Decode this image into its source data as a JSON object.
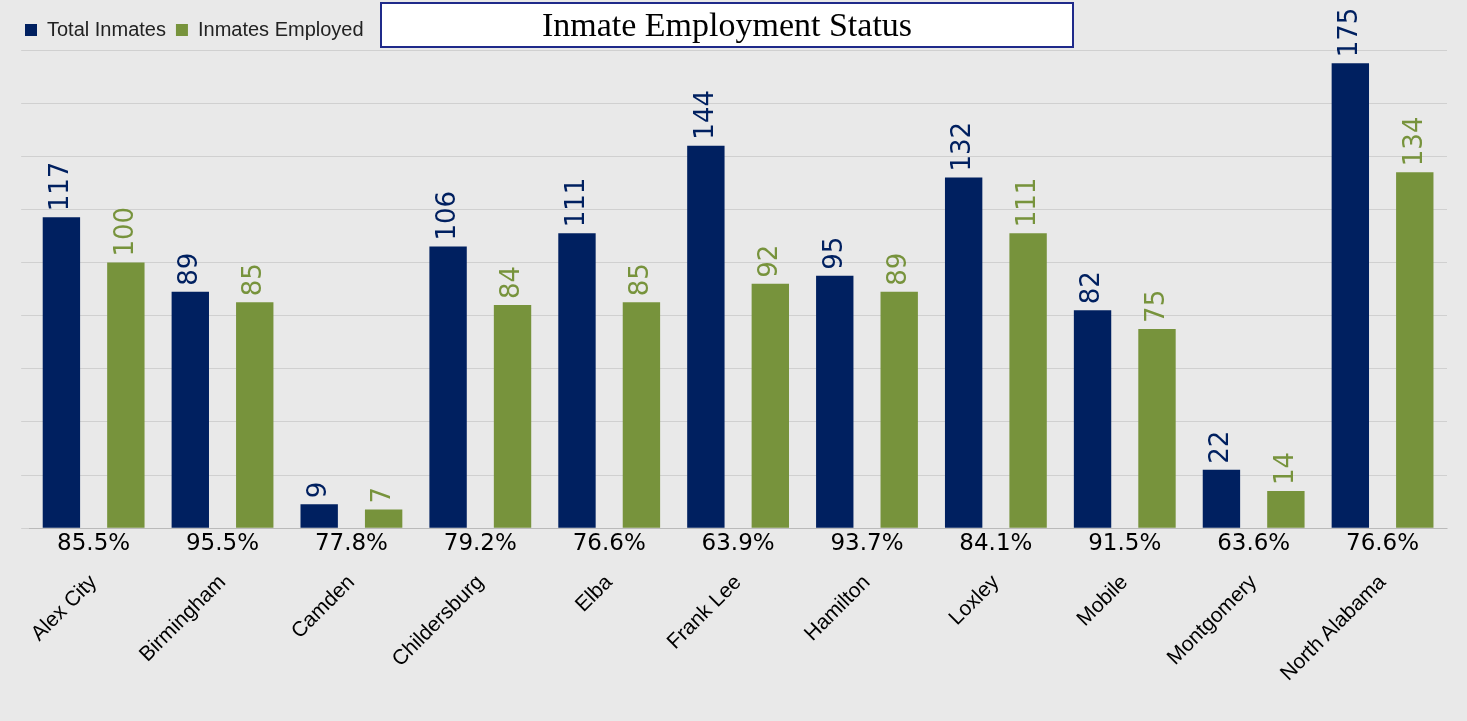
{
  "chart_data": {
    "type": "bar",
    "title": "Inmate Employment Status",
    "categories": [
      "Alex City",
      "Birmingham",
      "Camden",
      "Childersburg",
      "Elba",
      "Frank Lee",
      "Hamilton",
      "Loxley",
      "Mobile",
      "Montgomery",
      "North Alabama"
    ],
    "series": [
      {
        "name": "Total Inmates",
        "color": "#002060",
        "values": [
          117,
          89,
          9,
          106,
          111,
          144,
          95,
          132,
          82,
          22,
          175
        ]
      },
      {
        "name": "Inmates Employed",
        "color": "#77933c",
        "values": [
          100,
          85,
          7,
          84,
          85,
          92,
          89,
          111,
          75,
          14,
          134
        ]
      }
    ],
    "annotations": [
      "85.5%",
      "95.5%",
      "77.8%",
      "79.2%",
      "76.6%",
      "63.9%",
      "93.7%",
      "84.1%",
      "91.5%",
      "63.6%",
      "76.6%"
    ],
    "data_labels": true,
    "grid": "y",
    "legend": "top left"
  }
}
